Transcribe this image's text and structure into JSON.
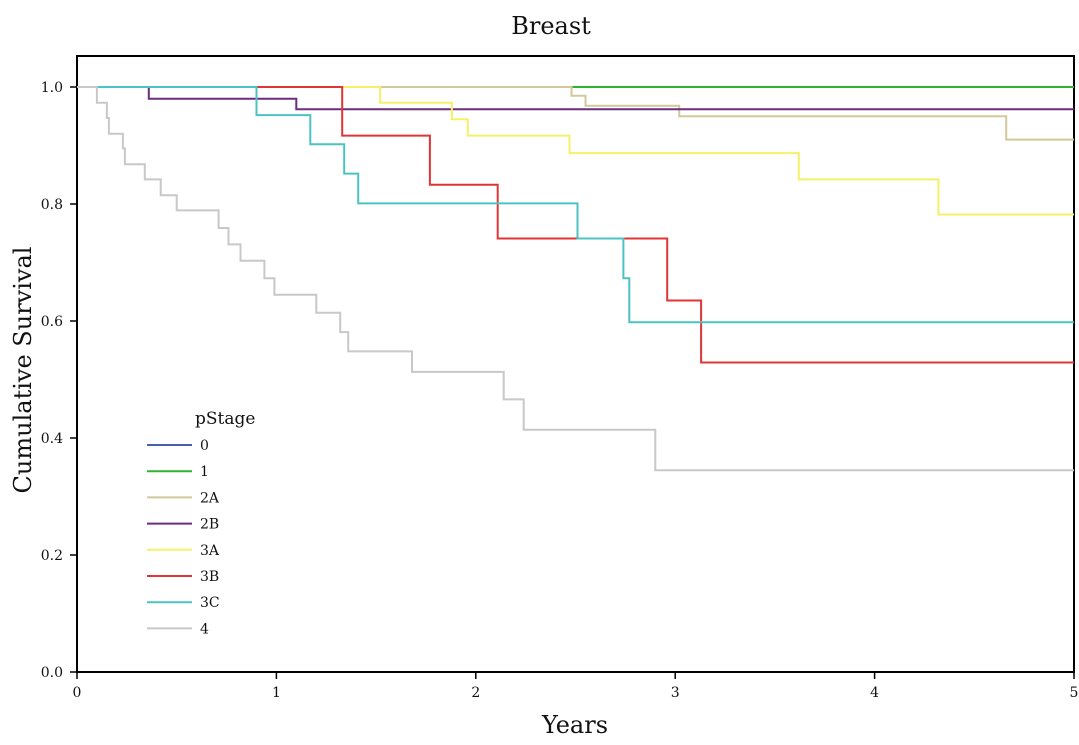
{
  "chart_data": {
    "type": "line",
    "step": true,
    "title": "Breast",
    "xlabel": "Years",
    "ylabel": "Cumulative Survival",
    "xlim": [
      0,
      5
    ],
    "ylim": [
      0,
      1.05
    ],
    "x_ticks": [
      0,
      1,
      2,
      3,
      4,
      5
    ],
    "x_tick_labels": [
      "0",
      "1",
      "2",
      "3",
      "4",
      "5"
    ],
    "y_ticks": [
      0.0,
      0.2,
      0.4,
      0.6,
      0.8,
      1.0
    ],
    "y_tick_labels": [
      "0.0",
      "0.2",
      "0.4",
      "0.6",
      "0.8",
      "1.0"
    ],
    "grid": false,
    "legend": {
      "title": "pStage",
      "placement": "lower-left"
    },
    "series": [
      {
        "name": "0",
        "color": "#4a5fb0",
        "points": [
          [
            0,
            1.0
          ],
          [
            5,
            1.0
          ]
        ]
      },
      {
        "name": "1",
        "color": "#2db52d",
        "points": [
          [
            0,
            1.0
          ],
          [
            5,
            1.0
          ]
        ]
      },
      {
        "name": "2A",
        "color": "#d2c89a",
        "points": [
          [
            0,
            1.0
          ],
          [
            2.48,
            1.0
          ],
          [
            2.48,
            0.985
          ],
          [
            2.55,
            0.985
          ],
          [
            2.55,
            0.968
          ],
          [
            3.02,
            0.968
          ],
          [
            3.02,
            0.95
          ],
          [
            4.66,
            0.95
          ],
          [
            4.66,
            0.91
          ],
          [
            5,
            0.91
          ]
        ]
      },
      {
        "name": "2B",
        "color": "#6b2d7d",
        "points": [
          [
            0,
            1.0
          ],
          [
            0.36,
            1.0
          ],
          [
            0.36,
            0.98
          ],
          [
            1.1,
            0.98
          ],
          [
            1.1,
            0.962
          ],
          [
            5,
            0.962
          ]
        ]
      },
      {
        "name": "3A",
        "color": "#f5f068",
        "points": [
          [
            0,
            1.0
          ],
          [
            1.52,
            1.0
          ],
          [
            1.52,
            0.973
          ],
          [
            1.88,
            0.973
          ],
          [
            1.88,
            0.945
          ],
          [
            1.96,
            0.945
          ],
          [
            1.96,
            0.917
          ],
          [
            2.47,
            0.917
          ],
          [
            2.47,
            0.887
          ],
          [
            3.62,
            0.887
          ],
          [
            3.62,
            0.842
          ],
          [
            4.32,
            0.842
          ],
          [
            4.32,
            0.782
          ],
          [
            5,
            0.782
          ]
        ]
      },
      {
        "name": "3B",
        "color": "#e03535",
        "points": [
          [
            0,
            1.0
          ],
          [
            1.33,
            1.0
          ],
          [
            1.33,
            0.917
          ],
          [
            1.77,
            0.917
          ],
          [
            1.77,
            0.833
          ],
          [
            2.11,
            0.833
          ],
          [
            2.11,
            0.741
          ],
          [
            2.96,
            0.741
          ],
          [
            2.96,
            0.635
          ],
          [
            3.13,
            0.635
          ],
          [
            3.13,
            0.529
          ],
          [
            5,
            0.529
          ]
        ]
      },
      {
        "name": "3C",
        "color": "#4cc3c3",
        "points": [
          [
            0,
            1.0
          ],
          [
            0.9,
            1.0
          ],
          [
            0.9,
            0.952
          ],
          [
            1.17,
            0.952
          ],
          [
            1.17,
            0.902
          ],
          [
            1.34,
            0.902
          ],
          [
            1.34,
            0.852
          ],
          [
            1.41,
            0.852
          ],
          [
            1.41,
            0.801
          ],
          [
            2.51,
            0.801
          ],
          [
            2.51,
            0.741
          ],
          [
            2.74,
            0.741
          ],
          [
            2.74,
            0.673
          ],
          [
            2.77,
            0.673
          ],
          [
            2.77,
            0.598
          ],
          [
            5,
            0.598
          ]
        ]
      },
      {
        "name": "4",
        "color": "#c8c8c8",
        "points": [
          [
            0,
            1.0
          ],
          [
            0.1,
            1.0
          ],
          [
            0.1,
            0.973
          ],
          [
            0.15,
            0.973
          ],
          [
            0.15,
            0.947
          ],
          [
            0.16,
            0.947
          ],
          [
            0.16,
            0.92
          ],
          [
            0.23,
            0.92
          ],
          [
            0.23,
            0.895
          ],
          [
            0.24,
            0.895
          ],
          [
            0.24,
            0.868
          ],
          [
            0.34,
            0.868
          ],
          [
            0.34,
            0.842
          ],
          [
            0.42,
            0.842
          ],
          [
            0.42,
            0.815
          ],
          [
            0.5,
            0.815
          ],
          [
            0.5,
            0.789
          ],
          [
            0.71,
            0.789
          ],
          [
            0.71,
            0.759
          ],
          [
            0.76,
            0.759
          ],
          [
            0.76,
            0.731
          ],
          [
            0.82,
            0.731
          ],
          [
            0.82,
            0.703
          ],
          [
            0.94,
            0.703
          ],
          [
            0.94,
            0.673
          ],
          [
            0.99,
            0.673
          ],
          [
            0.99,
            0.645
          ],
          [
            1.2,
            0.645
          ],
          [
            1.2,
            0.614
          ],
          [
            1.32,
            0.614
          ],
          [
            1.32,
            0.581
          ],
          [
            1.36,
            0.581
          ],
          [
            1.36,
            0.548
          ],
          [
            1.68,
            0.548
          ],
          [
            1.68,
            0.513
          ],
          [
            2.14,
            0.513
          ],
          [
            2.14,
            0.466
          ],
          [
            2.24,
            0.466
          ],
          [
            2.24,
            0.414
          ],
          [
            2.9,
            0.414
          ],
          [
            2.9,
            0.345
          ],
          [
            5,
            0.345
          ]
        ]
      }
    ]
  }
}
